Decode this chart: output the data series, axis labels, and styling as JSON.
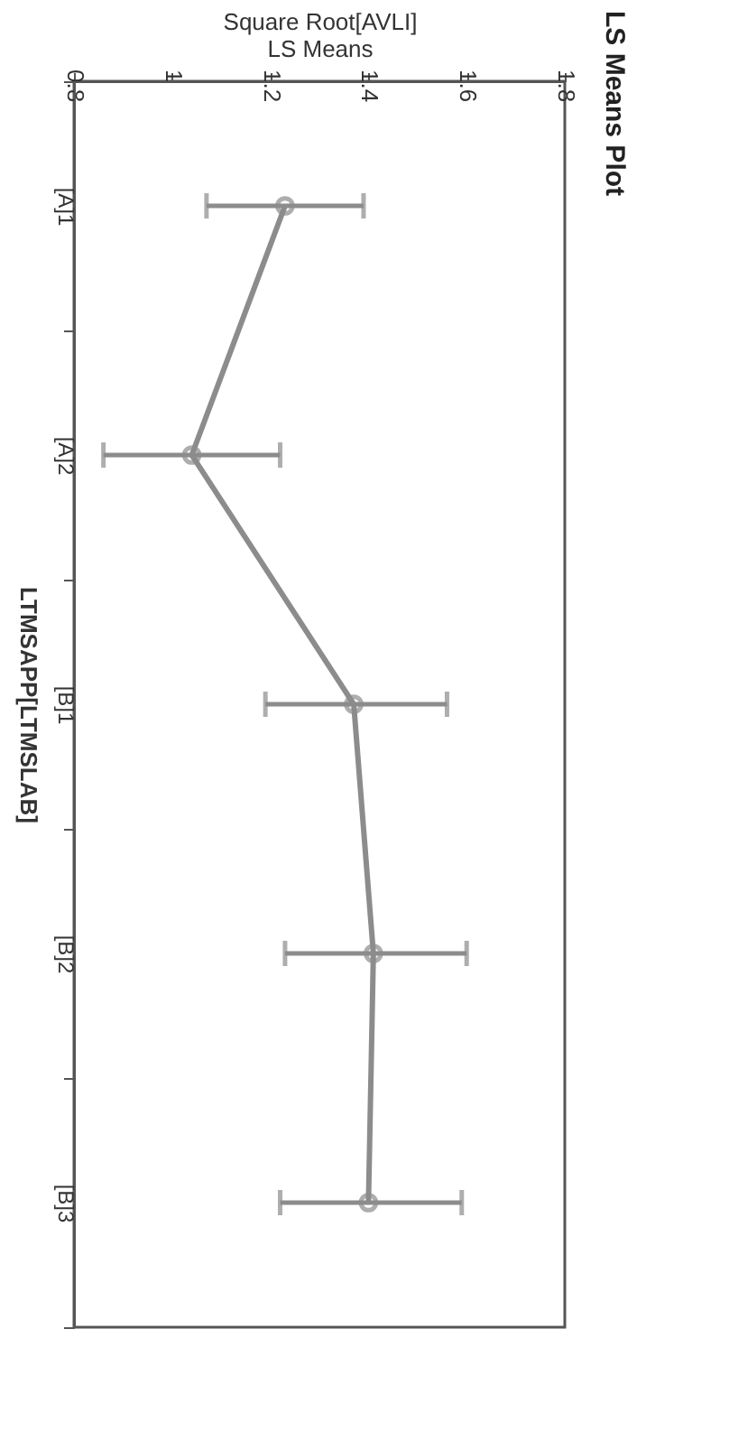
{
  "chart_data": {
    "type": "line",
    "title": "LS Means Plot",
    "orientation": "horizontal",
    "xlabel": "Square Root[AVLI]\nLS Means",
    "ylabel": "LTMSAPP[LTMSLAB]",
    "categories": [
      "[A]1",
      "[A]2",
      "[B]1",
      "[B]2",
      "[B]3"
    ],
    "series": [
      {
        "color": "#8c8c8c",
        "values": [
          1.23,
          1.04,
          1.37,
          1.41,
          1.4
        ],
        "errors": [
          [
            1.07,
            1.39
          ],
          [
            0.86,
            1.22
          ],
          [
            1.19,
            1.56
          ],
          [
            1.23,
            1.6
          ],
          [
            1.22,
            1.59
          ]
        ]
      }
    ],
    "xlim": [
      0.8,
      1.8
    ],
    "xticks": [
      0.8,
      1,
      1.2,
      1.4,
      1.6,
      1.8
    ],
    "grid": false,
    "marker": "circle",
    "line_style": "solid"
  }
}
